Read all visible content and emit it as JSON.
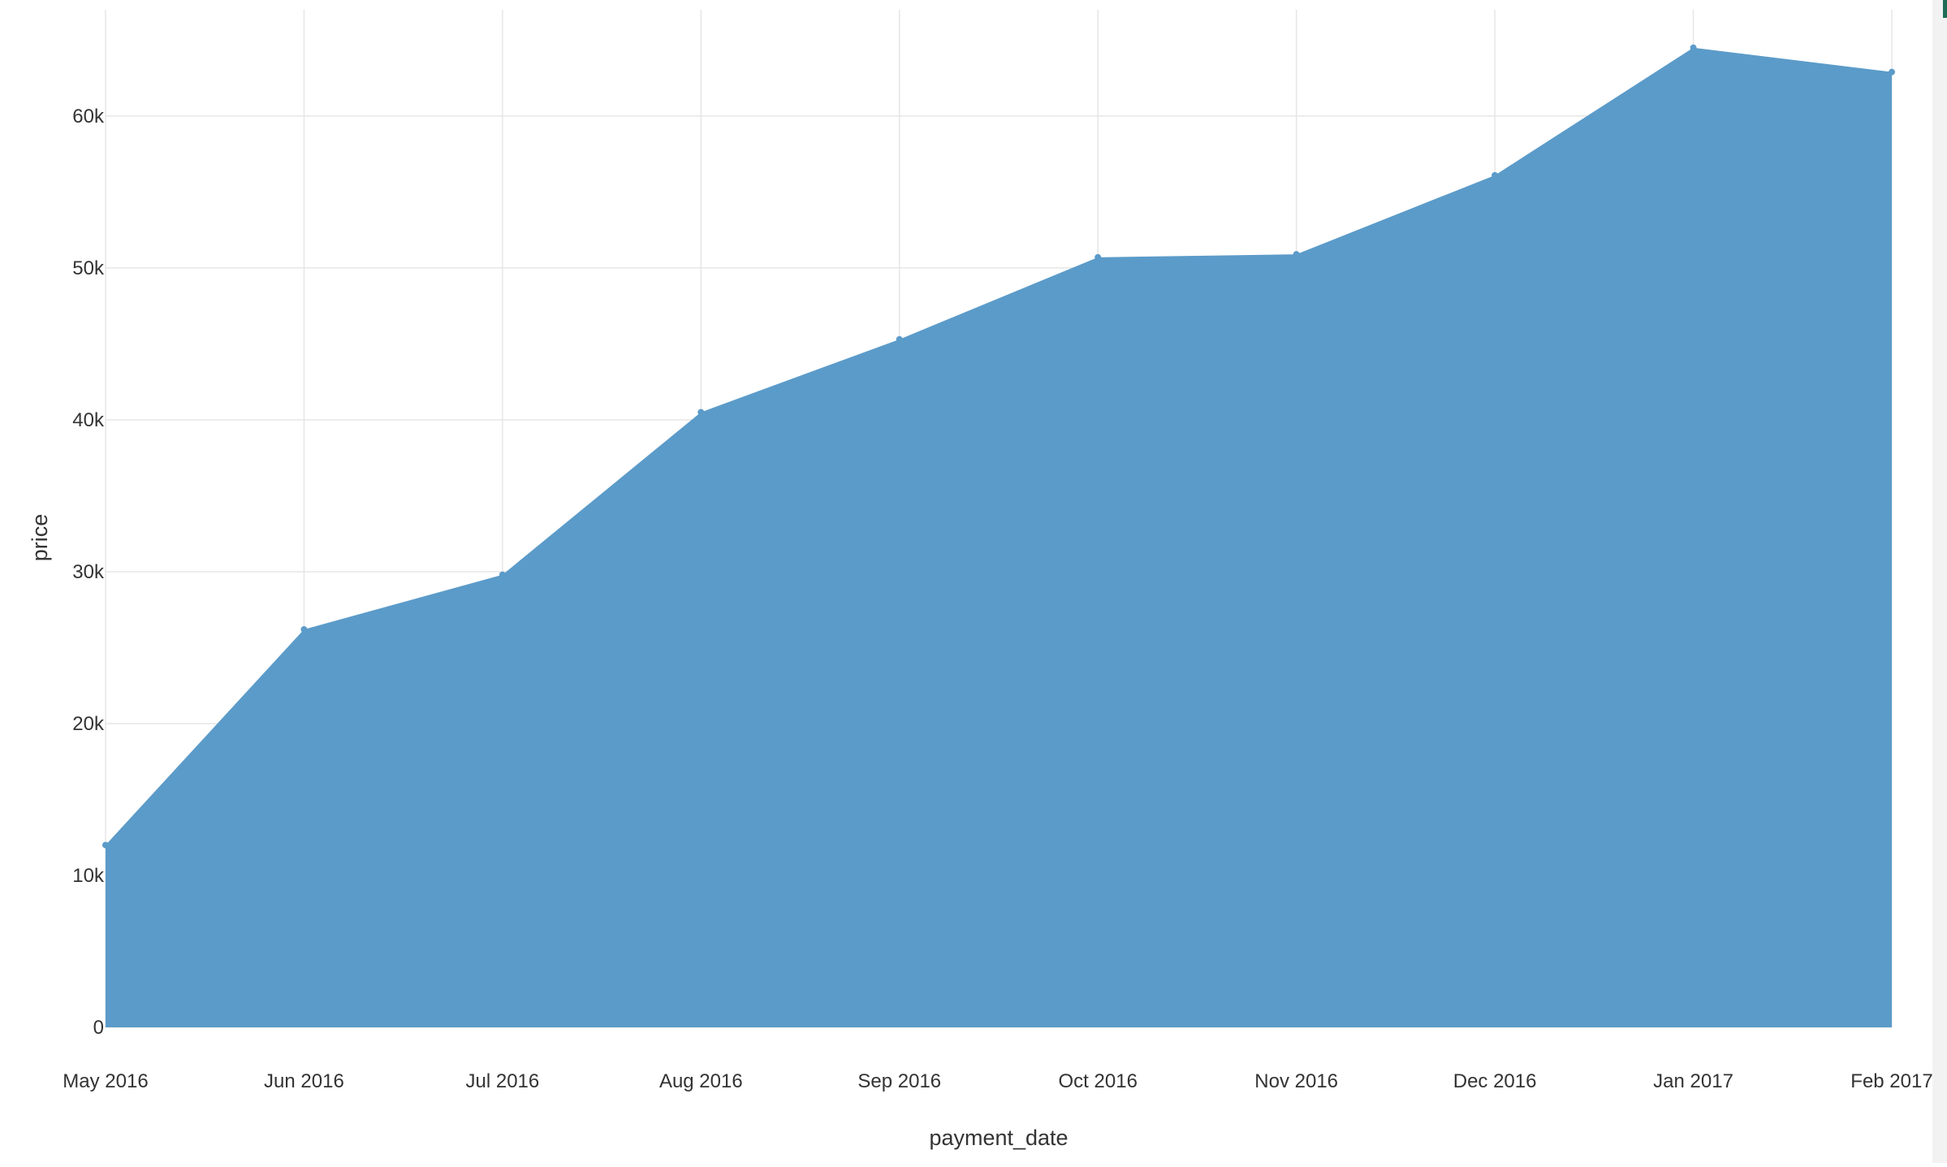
{
  "chart_data": {
    "type": "area",
    "xlabel": "payment_date",
    "ylabel": "price",
    "x": [
      "2016-05-01",
      "2016-06-01",
      "2016-07-01",
      "2016-08-01",
      "2016-09-01",
      "2016-10-01",
      "2016-11-01",
      "2016-12-01",
      "2017-01-01",
      "2017-02-01"
    ],
    "x_tick_labels": [
      "May 2016",
      "Jun 2016",
      "Jul 2016",
      "Aug 2016",
      "Sep 2016",
      "Oct 2016",
      "Nov 2016",
      "Dec 2016",
      "Jan 2017",
      "Feb 2017"
    ],
    "series": [
      {
        "values": [
          12000,
          26200,
          29800,
          40500,
          45300,
          50700,
          50900,
          56100,
          64500,
          62900
        ],
        "color": "#5b9bc9"
      }
    ],
    "ylim": [
      0,
      67000
    ],
    "y_ticks": [
      0,
      10000,
      20000,
      30000,
      40000,
      50000,
      60000
    ],
    "y_tick_labels": [
      "0",
      "10k",
      "20k",
      "30k",
      "40k",
      "50k",
      "60k"
    ],
    "grid": true,
    "legend": "none"
  }
}
